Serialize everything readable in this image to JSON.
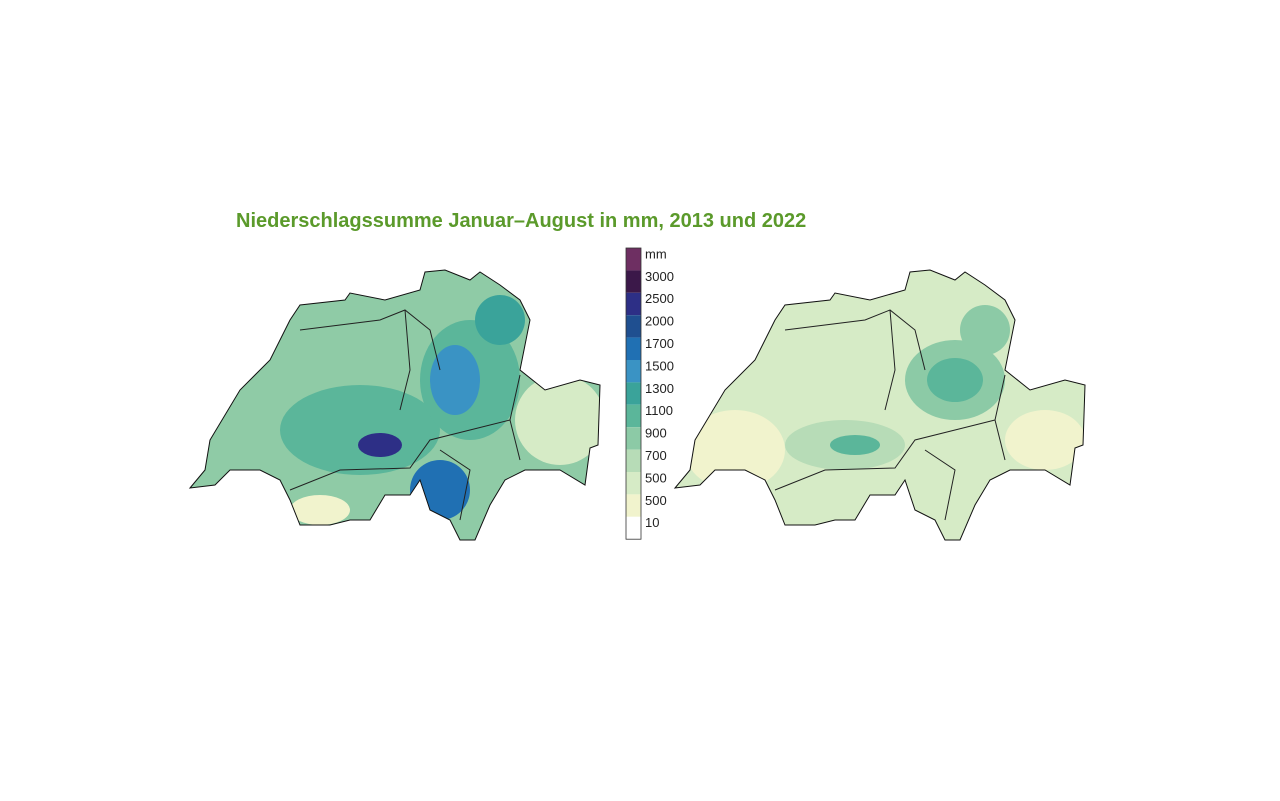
{
  "title": "Niederschlagssumme Januar–August in mm, 2013 und 2022",
  "legend": [
    {
      "label": "mm",
      "color": "#6e2f62"
    },
    {
      "label": "3000",
      "color": "#3b1849"
    },
    {
      "label": "2500",
      "color": "#2d2f86"
    },
    {
      "label": "2000",
      "color": "#1f4f90"
    },
    {
      "label": "1700",
      "color": "#2070b3"
    },
    {
      "label": "1500",
      "color": "#3a93c4"
    },
    {
      "label": "1300",
      "color": "#3aa39a"
    },
    {
      "label": "1100",
      "color": "#5bb69a"
    },
    {
      "label": "900",
      "color": "#8ccaa6"
    },
    {
      "label": "700",
      "color": "#b7dcb7"
    },
    {
      "label": "500",
      "color": "#d6ebc6"
    },
    {
      "label": "500",
      "color": "#f1f3cd"
    },
    {
      "label": "10",
      "color": "#ffffff"
    }
  ]
}
